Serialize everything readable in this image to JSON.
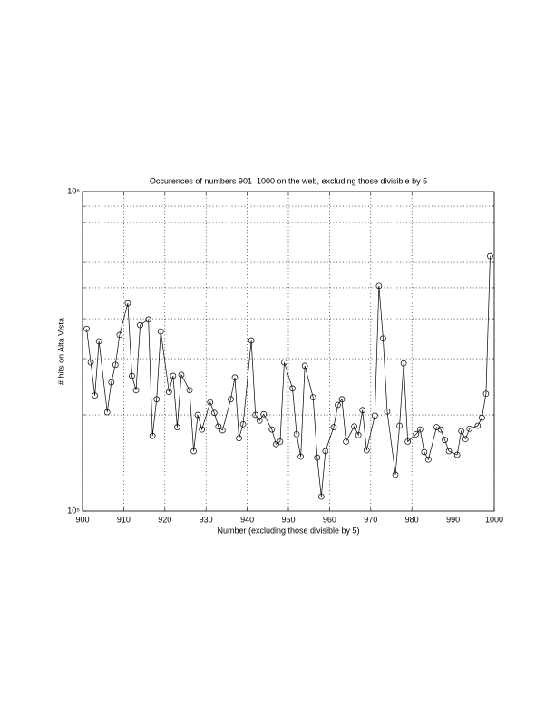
{
  "chart_data": {
    "type": "line",
    "title": "Occurences of numbers 901–1000 on the web, excluding those divisible by 5",
    "x_label": "Number (excluding those divisible by 5)",
    "y_label": "# hits on Alta Vista",
    "x": [
      901,
      902,
      903,
      904,
      906,
      907,
      908,
      909,
      911,
      912,
      913,
      914,
      916,
      917,
      918,
      919,
      921,
      922,
      923,
      924,
      926,
      927,
      928,
      929,
      931,
      932,
      933,
      934,
      936,
      937,
      938,
      939,
      941,
      942,
      943,
      944,
      946,
      947,
      948,
      949,
      951,
      952,
      953,
      954,
      956,
      957,
      958,
      959,
      961,
      962,
      963,
      964,
      966,
      967,
      968,
      969,
      971,
      972,
      973,
      974,
      976,
      977,
      978,
      979,
      981,
      982,
      983,
      984,
      986,
      987,
      988,
      989,
      991,
      992,
      993,
      994,
      996,
      997,
      998,
      999
    ],
    "series": [
      {
        "color": "#000000",
        "marker": "circle",
        "values": [
          372000,
          292000,
          230000,
          340000,
          204000,
          253000,
          287000,
          356000,
          447000,
          265000,
          239000,
          382000,
          398000,
          172000,
          224000,
          365000,
          236000,
          265000,
          183000,
          267000,
          239000,
          154000,
          200000,
          180000,
          219000,
          203000,
          184000,
          179000,
          224000,
          262000,
          169000,
          187000,
          342000,
          200000,
          192000,
          201000,
          180000,
          162000,
          165000,
          292000,
          242000,
          174000,
          148000,
          285000,
          227000,
          147000,
          111000,
          154000,
          183000,
          215000,
          224000,
          165000,
          184000,
          173000,
          207000,
          155000,
          199000,
          507000,
          347000,
          205000,
          130000,
          185000,
          290000,
          165000,
          174000,
          180000,
          153000,
          145000,
          183000,
          180000,
          167000,
          154000,
          150000,
          178000,
          168000,
          181000,
          185000,
          196000,
          233000,
          628000
        ]
      }
    ],
    "xlim": [
      900,
      1000
    ],
    "xticks": [
      900,
      910,
      920,
      930,
      940,
      950,
      960,
      970,
      980,
      990,
      1000
    ],
    "ylim": [
      100000,
      1000000
    ],
    "log_y": true,
    "yticks": [
      {
        "value": 100000,
        "label": "10⁵"
      },
      {
        "value": 1000000,
        "label": "10⁶"
      }
    ],
    "minor_yticks": [
      200000,
      300000,
      400000,
      500000,
      600000,
      700000,
      800000,
      900000
    ],
    "grid": true
  }
}
